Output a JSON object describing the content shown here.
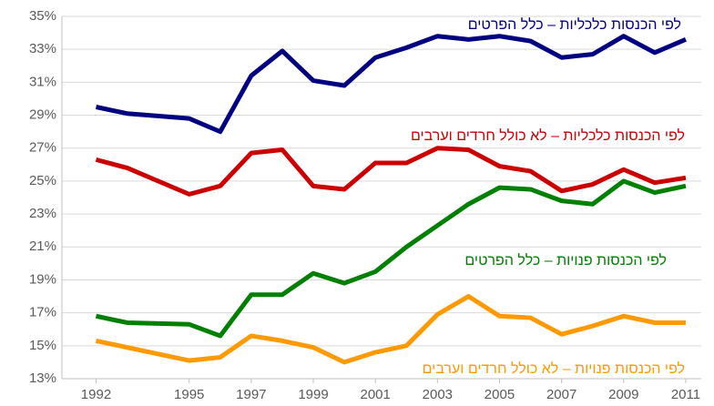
{
  "chart_data": {
    "type": "line",
    "x": [
      1992,
      1993,
      1995,
      1996,
      1997,
      1998,
      1999,
      2000,
      2001,
      2002,
      2003,
      2004,
      2005,
      2006,
      2007,
      2008,
      2009,
      2010,
      2011
    ],
    "series": [
      {
        "name": "לפי הכנסות כלכליות – כלל הפרטים",
        "color": "#000080",
        "values": [
          29.5,
          29.1,
          28.8,
          28.0,
          31.4,
          32.9,
          31.1,
          30.8,
          32.5,
          33.1,
          33.8,
          33.6,
          33.8,
          33.5,
          32.5,
          32.7,
          33.8,
          32.8,
          33.6
        ]
      },
      {
        "name": "לפי הכנסות כלכליות – לא כולל חרדים וערבים",
        "color": "#cc0000",
        "values": [
          26.3,
          25.8,
          24.2,
          24.7,
          26.7,
          26.9,
          24.7,
          24.5,
          26.1,
          26.1,
          27.0,
          26.9,
          25.9,
          25.6,
          24.4,
          24.8,
          25.7,
          24.9,
          25.2
        ]
      },
      {
        "name": "לפי הכנסות פנויות – כלל הפרטים",
        "color": "#008000",
        "values": [
          16.8,
          16.4,
          16.3,
          15.6,
          18.1,
          18.1,
          19.4,
          18.8,
          19.5,
          21.0,
          22.3,
          23.6,
          24.6,
          24.5,
          23.8,
          23.6,
          25.0,
          24.3,
          24.7
        ]
      },
      {
        "name": "לפי הכנסות פנויות – לא כולל חרדים וערבים",
        "color": "#ff9900",
        "values": [
          15.3,
          14.9,
          14.1,
          14.3,
          15.6,
          15.3,
          14.9,
          14.0,
          14.6,
          15.0,
          16.9,
          18.0,
          16.8,
          16.7,
          15.7,
          16.2,
          16.8,
          16.4,
          16.4
        ]
      }
    ],
    "xlim": [
      1990.9,
      2011.5
    ],
    "xticks": [
      1992,
      1995,
      1997,
      1999,
      2001,
      2003,
      2005,
      2007,
      2009,
      2011
    ],
    "ylim": [
      13,
      35
    ],
    "yticks": [
      {
        "value": 13,
        "label": "13%"
      },
      {
        "value": 15,
        "label": "15%"
      },
      {
        "value": 17,
        "label": "17%"
      },
      {
        "value": 19,
        "label": "19%"
      },
      {
        "value": 21,
        "label": "21%"
      },
      {
        "value": 23,
        "label": "23%"
      },
      {
        "value": 25,
        "label": "25%"
      },
      {
        "value": 27,
        "label": "27%"
      },
      {
        "value": 29,
        "label": "29%"
      },
      {
        "value": 31,
        "label": "31%"
      },
      {
        "value": 33,
        "label": "33%"
      },
      {
        "value": 35,
        "label": "35%"
      }
    ],
    "grid": true
  }
}
